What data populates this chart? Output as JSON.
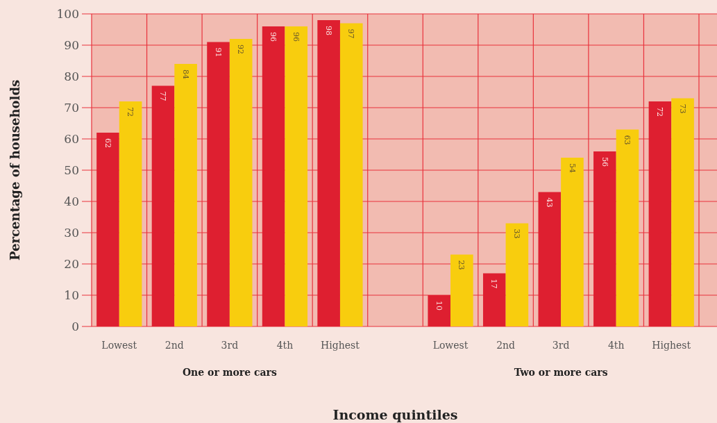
{
  "chart_data": {
    "type": "bar",
    "xlabel": "Income quintiles",
    "ylabel": "Percentage of households",
    "categories": [
      "Lowest",
      "2nd",
      "3rd",
      "4th",
      "Highest",
      null,
      "Lowest",
      "2nd",
      "3rd",
      "4th",
      "Highest"
    ],
    "series": [
      {
        "color": "#de1f30",
        "values": [
          62,
          77,
          91,
          96,
          98,
          null,
          10,
          17,
          43,
          56,
          72
        ]
      },
      {
        "color": "#f8cd0e",
        "values": [
          72,
          84,
          92,
          96,
          97,
          null,
          23,
          33,
          54,
          63,
          73
        ]
      }
    ],
    "ylim": [
      0,
      100
    ],
    "yticks": [
      0,
      10,
      20,
      30,
      40,
      50,
      60,
      70,
      80,
      90,
      100
    ],
    "grid": true,
    "data_labels": true,
    "annotations": [
      "One or more cars",
      "Two or more cars"
    ]
  }
}
